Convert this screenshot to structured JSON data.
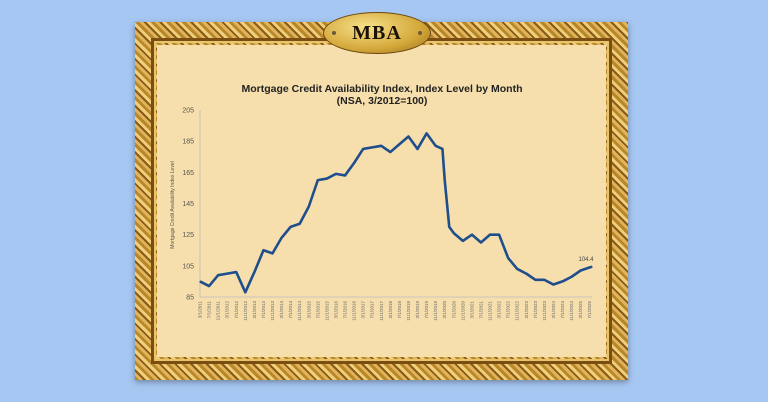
{
  "logo": {
    "text": "MBA"
  },
  "colors": {
    "background": "#a7c7f3",
    "canvas": "#f6dfac",
    "line": "#1f4e8c",
    "frame": "#c8953a"
  },
  "chart_data": {
    "type": "line",
    "title": "Mortgage Credit Availability Index, Index Level by Month",
    "subtitle": "(NSA, 3/2012=100)",
    "xlabel": "",
    "ylabel": "Mortgage Credit Availability Index Level",
    "ylim": [
      85,
      205
    ],
    "yticks": [
      85,
      105,
      125,
      145,
      165,
      185,
      205
    ],
    "grid": false,
    "legend": "none",
    "x_tick_labels": [
      "3/1/2011",
      "7/1/2011",
      "11/1/2011",
      "3/1/2012",
      "7/1/2012",
      "11/1/2012",
      "3/1/2013",
      "7/1/2013",
      "11/1/2013",
      "3/1/2014",
      "7/1/2014",
      "11/1/2014",
      "3/1/2015",
      "7/1/2015",
      "11/1/2015",
      "3/1/2016",
      "7/1/2016",
      "11/1/2016",
      "3/1/2017",
      "7/1/2017",
      "11/1/2017",
      "3/1/2018",
      "7/1/2018",
      "11/1/2018",
      "3/1/2019",
      "7/1/2019",
      "11/1/2019",
      "3/1/2020",
      "7/1/2020",
      "11/1/2020",
      "3/1/2021",
      "7/1/2021",
      "11/1/2021",
      "3/1/2022",
      "7/1/2022",
      "11/1/2022",
      "3/1/2023",
      "7/1/2023",
      "11/1/2023",
      "3/1/2024",
      "7/1/2024",
      "11/1/2024",
      "3/1/2025",
      "7/1/2025"
    ],
    "series": [
      {
        "x": [
          "2011-03",
          "2011-07",
          "2011-11",
          "2012-03",
          "2012-07",
          "2012-11",
          "2013-03",
          "2013-07",
          "2013-11",
          "2014-03",
          "2014-07",
          "2014-11",
          "2015-03",
          "2015-07",
          "2015-11",
          "2016-03",
          "2016-07",
          "2016-11",
          "2017-03",
          "2017-07",
          "2017-11",
          "2018-03",
          "2018-07",
          "2018-11",
          "2019-03",
          "2019-07",
          "2019-11",
          "2020-02",
          "2020-03",
          "2020-05",
          "2020-07",
          "2020-11",
          "2021-03",
          "2021-07",
          "2021-11",
          "2022-03",
          "2022-07",
          "2022-11",
          "2023-03",
          "2023-07",
          "2023-11",
          "2024-03",
          "2024-07",
          "2024-11",
          "2025-03",
          "2025-07",
          "2025-08"
        ],
        "values": [
          95,
          92,
          99,
          100,
          101,
          88,
          101,
          115,
          113,
          123,
          130,
          132,
          143,
          160,
          161,
          164,
          163,
          171,
          180,
          181,
          182,
          178,
          183,
          188,
          180,
          190,
          182,
          180,
          160,
          130,
          126,
          121,
          125,
          120,
          125,
          125,
          110,
          103,
          100,
          96,
          96,
          93,
          95,
          98,
          102,
          104,
          104.4
        ]
      }
    ],
    "annotations": [
      {
        "x": "2025-08",
        "text": "104.4"
      }
    ]
  }
}
